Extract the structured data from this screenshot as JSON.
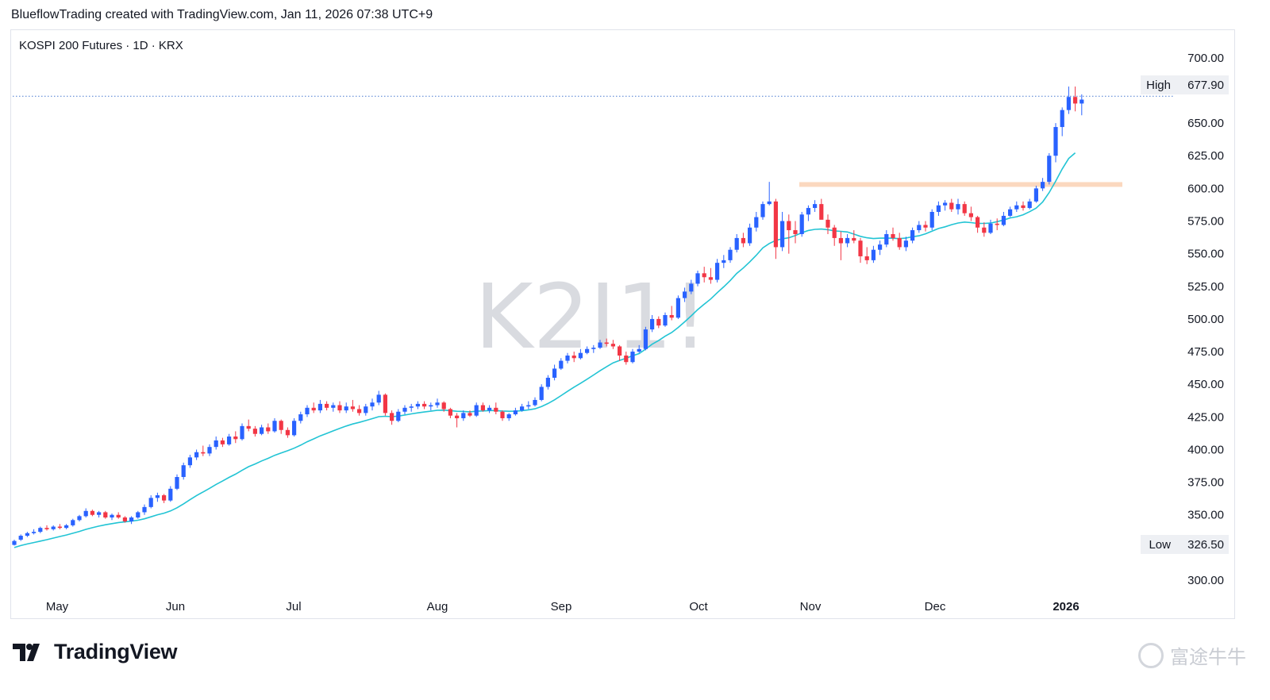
{
  "header": {
    "attribution": "BlueflowTrading created with TradingView.com, Jan 11, 2026 07:38 UTC+9"
  },
  "symbol": {
    "label": "KOSPI 200 Futures · 1D · KRX",
    "watermark": "K2I1!"
  },
  "footer": {
    "brand": "TradingView",
    "corner_mark": "富途牛牛"
  },
  "colors": {
    "up": "#2962ff",
    "down": "#f23645",
    "ma": "#22c4d4",
    "resistance": "#fbd8bf",
    "dotted": "#4a7bd1"
  },
  "chart_data": {
    "type": "candlestick",
    "ylim": [
      290,
      710
    ],
    "y_ticks": [
      "700.00",
      "650.00",
      "625.00",
      "600.00",
      "575.00",
      "550.00",
      "525.00",
      "500.00",
      "475.00",
      "450.00",
      "425.00",
      "400.00",
      "375.00",
      "350.00",
      "300.00"
    ],
    "x_labels": [
      "May",
      "Jun",
      "Jul",
      "Aug",
      "Sep",
      "Oct",
      "Nov",
      "Dec",
      "2026"
    ],
    "high_label": "High",
    "high_value": "677.90",
    "low_label": "Low",
    "low_value": "326.50",
    "resistance_level": 603,
    "ohlc": [
      [
        327,
        331,
        326.5,
        330
      ],
      [
        331,
        335,
        330,
        334
      ],
      [
        334,
        337,
        333,
        336
      ],
      [
        336,
        339,
        335,
        337
      ],
      [
        337,
        341,
        336,
        340
      ],
      [
        340,
        342,
        338,
        339
      ],
      [
        339,
        342,
        338,
        341
      ],
      [
        341,
        343,
        339,
        340
      ],
      [
        340,
        343,
        339,
        342
      ],
      [
        342,
        347,
        341,
        346
      ],
      [
        346,
        350,
        345,
        349
      ],
      [
        349,
        355,
        348,
        353
      ],
      [
        353,
        354,
        349,
        350
      ],
      [
        350,
        353,
        348,
        352
      ],
      [
        352,
        353,
        347,
        348
      ],
      [
        348,
        351,
        346,
        350
      ],
      [
        350,
        352,
        347,
        348
      ],
      [
        348,
        349,
        344,
        345
      ],
      [
        345,
        349,
        343,
        348
      ],
      [
        348,
        353,
        347,
        352
      ],
      [
        352,
        358,
        350,
        356
      ],
      [
        356,
        365,
        355,
        363
      ],
      [
        363,
        367,
        360,
        365
      ],
      [
        365,
        366,
        359,
        361
      ],
      [
        361,
        372,
        360,
        370
      ],
      [
        370,
        381,
        369,
        379
      ],
      [
        379,
        390,
        377,
        388
      ],
      [
        388,
        396,
        386,
        394
      ],
      [
        394,
        400,
        392,
        398
      ],
      [
        398,
        403,
        395,
        397
      ],
      [
        397,
        404,
        395,
        402
      ],
      [
        402,
        410,
        400,
        407
      ],
      [
        407,
        409,
        402,
        404
      ],
      [
        404,
        412,
        403,
        410
      ],
      [
        410,
        414,
        405,
        408
      ],
      [
        408,
        420,
        407,
        418
      ],
      [
        418,
        423,
        414,
        416
      ],
      [
        416,
        418,
        410,
        412
      ],
      [
        412,
        419,
        411,
        417
      ],
      [
        417,
        420,
        412,
        414
      ],
      [
        414,
        424,
        413,
        422
      ],
      [
        422,
        423,
        412,
        415
      ],
      [
        415,
        417,
        409,
        411
      ],
      [
        411,
        424,
        410,
        422
      ],
      [
        422,
        429,
        420,
        427
      ],
      [
        427,
        434,
        425,
        432
      ],
      [
        432,
        436,
        428,
        430
      ],
      [
        430,
        438,
        428,
        435
      ],
      [
        435,
        437,
        430,
        432
      ],
      [
        432,
        436,
        429,
        434
      ],
      [
        434,
        437,
        428,
        430
      ],
      [
        430,
        436,
        428,
        433
      ],
      [
        433,
        438,
        429,
        431
      ],
      [
        431,
        434,
        426,
        428
      ],
      [
        428,
        435,
        426,
        433
      ],
      [
        433,
        439,
        430,
        436
      ],
      [
        436,
        445,
        434,
        442
      ],
      [
        442,
        443,
        426,
        428
      ],
      [
        428,
        430,
        419,
        422
      ],
      [
        422,
        431,
        421,
        429
      ],
      [
        429,
        434,
        427,
        432
      ],
      [
        432,
        435,
        429,
        433
      ],
      [
        433,
        437,
        431,
        435
      ],
      [
        435,
        437,
        431,
        433
      ],
      [
        433,
        436,
        430,
        434
      ],
      [
        434,
        439,
        432,
        436
      ],
      [
        436,
        437,
        429,
        431
      ],
      [
        431,
        432,
        424,
        426
      ],
      [
        426,
        428,
        417,
        424
      ],
      [
        424,
        430,
        422,
        428
      ],
      [
        428,
        430,
        425,
        426
      ],
      [
        426,
        436,
        425,
        434
      ],
      [
        434,
        436,
        429,
        430
      ],
      [
        430,
        434,
        428,
        432
      ],
      [
        432,
        436,
        427,
        429
      ],
      [
        429,
        430,
        422,
        424
      ],
      [
        424,
        428,
        422,
        427
      ],
      [
        427,
        432,
        426,
        430
      ],
      [
        430,
        435,
        429,
        433
      ],
      [
        433,
        437,
        431,
        434
      ],
      [
        434,
        440,
        433,
        438
      ],
      [
        438,
        450,
        437,
        448
      ],
      [
        448,
        457,
        446,
        455
      ],
      [
        455,
        465,
        453,
        462
      ],
      [
        462,
        470,
        461,
        468
      ],
      [
        468,
        474,
        466,
        472
      ],
      [
        472,
        475,
        467,
        470
      ],
      [
        470,
        477,
        469,
        474
      ],
      [
        474,
        479,
        473,
        477
      ],
      [
        477,
        480,
        474,
        478
      ],
      [
        478,
        484,
        477,
        482
      ],
      [
        482,
        485,
        479,
        481
      ],
      [
        481,
        484,
        477,
        479
      ],
      [
        479,
        480,
        468,
        472
      ],
      [
        472,
        475,
        465,
        467
      ],
      [
        467,
        477,
        466,
        475
      ],
      [
        475,
        480,
        474,
        477
      ],
      [
        477,
        494,
        476,
        492
      ],
      [
        492,
        503,
        490,
        500
      ],
      [
        500,
        502,
        493,
        495
      ],
      [
        495,
        505,
        494,
        503
      ],
      [
        503,
        510,
        499,
        501
      ],
      [
        501,
        518,
        500,
        516
      ],
      [
        516,
        524,
        513,
        521
      ],
      [
        521,
        530,
        519,
        527
      ],
      [
        527,
        537,
        525,
        535
      ],
      [
        535,
        540,
        528,
        532
      ],
      [
        532,
        539,
        527,
        530
      ],
      [
        530,
        546,
        528,
        543
      ],
      [
        543,
        549,
        539,
        545
      ],
      [
        545,
        555,
        543,
        553
      ],
      [
        553,
        565,
        551,
        562
      ],
      [
        562,
        566,
        555,
        558
      ],
      [
        558,
        573,
        556,
        570
      ],
      [
        570,
        582,
        567,
        578
      ],
      [
        578,
        590,
        576,
        588
      ],
      [
        588,
        605,
        587,
        590
      ],
      [
        590,
        592,
        546,
        555
      ],
      [
        555,
        582,
        552,
        575
      ],
      [
        575,
        580,
        550,
        568
      ],
      [
        568,
        575,
        558,
        565
      ],
      [
        565,
        582,
        563,
        580
      ],
      [
        580,
        587,
        575,
        585
      ],
      [
        585,
        591,
        582,
        588
      ],
      [
        588,
        592,
        580,
        576
      ],
      [
        576,
        580,
        565,
        570
      ],
      [
        570,
        572,
        556,
        562
      ],
      [
        562,
        567,
        545,
        558
      ],
      [
        558,
        565,
        555,
        562
      ],
      [
        562,
        568,
        558,
        560
      ],
      [
        560,
        562,
        543,
        548
      ],
      [
        548,
        555,
        542,
        545
      ],
      [
        545,
        556,
        543,
        553
      ],
      [
        553,
        560,
        549,
        557
      ],
      [
        557,
        568,
        555,
        565
      ],
      [
        565,
        570,
        560,
        562
      ],
      [
        562,
        566,
        553,
        555
      ],
      [
        555,
        563,
        552,
        560
      ],
      [
        560,
        570,
        558,
        568
      ],
      [
        568,
        575,
        566,
        572
      ],
      [
        572,
        575,
        567,
        570
      ],
      [
        570,
        584,
        568,
        582
      ],
      [
        582,
        590,
        579,
        587
      ],
      [
        587,
        591,
        583,
        589
      ],
      [
        589,
        592,
        582,
        584
      ],
      [
        584,
        592,
        580,
        588
      ],
      [
        588,
        590,
        579,
        581
      ],
      [
        581,
        586,
        575,
        578
      ],
      [
        578,
        579,
        566,
        570
      ],
      [
        570,
        574,
        563,
        566
      ],
      [
        566,
        576,
        565,
        573
      ],
      [
        573,
        577,
        568,
        572
      ],
      [
        572,
        582,
        571,
        579
      ],
      [
        579,
        586,
        578,
        584
      ],
      [
        584,
        590,
        582,
        587
      ],
      [
        587,
        590,
        583,
        585
      ],
      [
        585,
        592,
        584,
        590
      ],
      [
        590,
        602,
        589,
        600
      ],
      [
        600,
        608,
        598,
        605
      ],
      [
        605,
        627,
        603,
        625
      ],
      [
        625,
        650,
        620,
        647
      ],
      [
        647,
        662,
        640,
        660
      ],
      [
        660,
        678,
        657,
        670
      ],
      [
        670,
        678,
        659,
        665
      ],
      [
        665,
        672,
        656,
        668
      ]
    ],
    "ma": [
      325,
      326.5,
      327.7,
      328.8,
      329.9,
      331,
      332.2,
      333.4,
      334.6,
      335.9,
      337.3,
      338.9,
      340.2,
      341.4,
      342.4,
      343.3,
      344.1,
      344.6,
      345.2,
      345.9,
      347,
      348.5,
      350.1,
      351.3,
      353,
      355.4,
      358.4,
      361.6,
      364.8,
      367.5,
      370.3,
      373.3,
      375.9,
      378.7,
      381.2,
      384.1,
      386.9,
      389,
      391.3,
      393.3,
      395.6,
      397.4,
      399.1,
      401.1,
      403.4,
      406,
      408.2,
      410.5,
      412.4,
      414.3,
      416.2,
      418,
      419.6,
      420.8,
      422.2,
      423.7,
      425.2,
      425.5,
      425.2,
      425.6,
      426.5,
      427.3,
      428.1,
      428.8,
      429.4,
      430.1,
      430.2,
      429.8,
      429.3,
      429.2,
      428.9,
      429.4,
      429.6,
      429.9,
      429.9,
      429.5,
      429.3,
      429.4,
      429.8,
      430.4,
      431.2,
      433,
      435.3,
      438.1,
      441.3,
      444.6,
      447.8,
      450.8,
      453.9,
      457.1,
      460.4,
      463.4,
      466.4,
      468.3,
      469.9,
      471.9,
      473.5,
      476.9,
      480.7,
      483.5,
      486.8,
      489.6,
      493.5,
      497.8,
      502.4,
      507.2,
      511.3,
      515.3,
      520.1,
      524.6,
      529.5,
      534.9,
      539,
      543.8,
      548.8,
      554.4,
      557.8,
      560.2,
      561.4,
      562.2,
      563.9,
      566,
      567.8,
      568.6,
      568.9,
      568.4,
      567.5,
      567.1,
      566.6,
      565,
      563.3,
      562.2,
      561.6,
      561.9,
      562,
      561.8,
      561.5,
      562,
      563,
      563.7,
      565.2,
      567.3,
      569.3,
      570.6,
      572.2,
      573.5,
      574.2,
      573.8,
      573.2,
      573.2,
      573.4,
      574.5,
      575.8,
      577.4,
      578.3,
      579.8,
      582.2,
      584.9,
      589.6,
      596.8,
      605.5,
      614.9,
      622.9,
      627.2
    ]
  }
}
